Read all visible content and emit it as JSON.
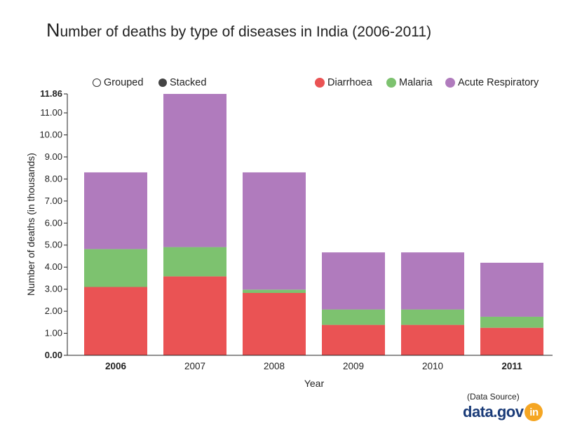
{
  "title_first": "N",
  "title_rest": "umber of deaths by type of diseases in India (2006-2011)",
  "controls": {
    "grouped_label": "Grouped",
    "stacked_label": "Stacked"
  },
  "source": {
    "label": "(Data Source)",
    "logo_text": "data.gov",
    "logo_badge": "in"
  },
  "colors": {
    "diarrhoea": "#ea5354",
    "malaria": "#7dc26f",
    "acute_respiratory": "#b07bbd"
  },
  "chart_data": {
    "type": "bar",
    "stacked": true,
    "title": "Number of deaths by type of diseases in India (2006-2011)",
    "xlabel": "Year",
    "ylabel": "Number of deaths (in thousands)",
    "categories": [
      "2006",
      "2007",
      "2008",
      "2009",
      "2010",
      "2011"
    ],
    "bold_categories": [
      "2006",
      "2011"
    ],
    "series": [
      {
        "name": "Diarrhoea",
        "color": "#ea5354",
        "values": [
          3.1,
          3.58,
          2.83,
          1.38,
          1.38,
          1.25
        ]
      },
      {
        "name": "Malaria",
        "color": "#7dc26f",
        "values": [
          1.72,
          1.33,
          0.15,
          0.7,
          0.7,
          0.5
        ]
      },
      {
        "name": "Acute Respiratory",
        "color": "#b07bbd",
        "values": [
          3.48,
          6.95,
          5.32,
          2.59,
          2.59,
          2.45
        ]
      }
    ],
    "yticks": [
      "0.00",
      "1.00",
      "2.00",
      "3.00",
      "4.00",
      "5.00",
      "6.00",
      "7.00",
      "8.00",
      "9.00",
      "10.00",
      "11.00",
      "11.86"
    ],
    "ylim": [
      0,
      11.86
    ]
  }
}
